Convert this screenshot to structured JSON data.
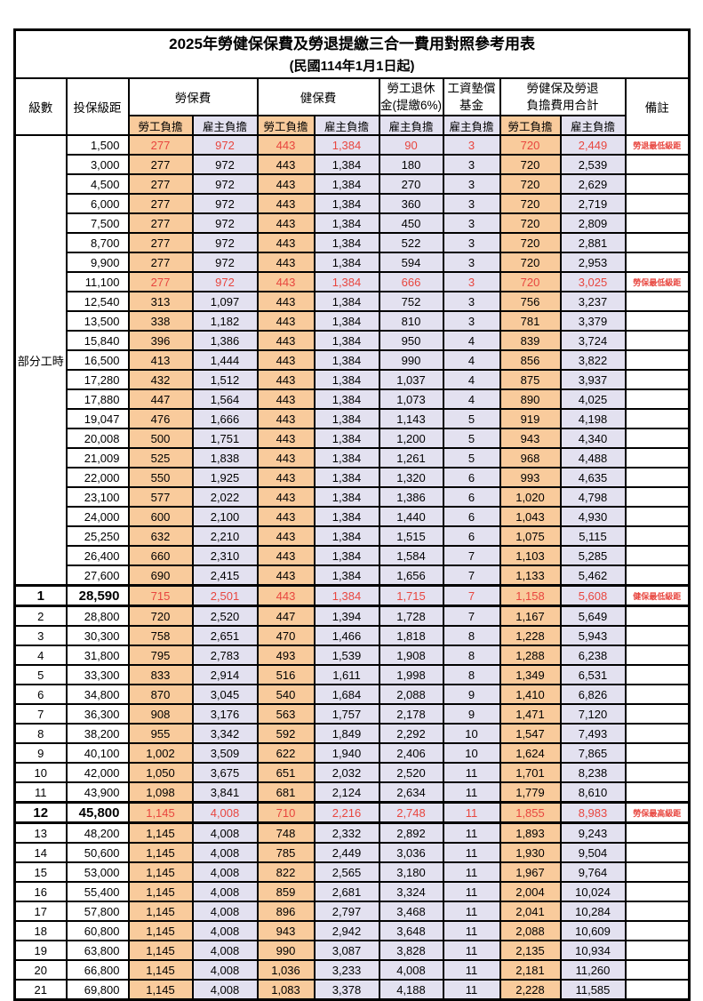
{
  "title": "2025年勞健保保費及勞退提繳三合一費用對照參考用表",
  "subtitle": "(民國114年1月1日起)",
  "colors": {
    "worker_bg": "#F9CB9C",
    "employer_bg": "#E3E1F0",
    "highlight_text": "#E8463F"
  },
  "header": {
    "level": "級數",
    "bracket": "投保級距",
    "labor_group": "勞保費",
    "health_group": "健保費",
    "pension_line1": "勞工退休",
    "pension_line2": "金(提繳6%)",
    "wage_fund_line1": "工資墊償",
    "wage_fund_line2": "基金",
    "total_line1": "勞健保及勞退",
    "total_line2": "負擔費用合計",
    "remark": "備註",
    "worker": "勞工負擔",
    "employer": "雇主負擔"
  },
  "table": {
    "part_time_label": "部分工時",
    "part_time_span": 23,
    "columns": [
      "勞保費-勞工負擔",
      "勞保費-雇主負擔",
      "健保費-勞工負擔",
      "健保費-雇主負擔",
      "勞工退休金-雇主負擔",
      "工資墊償基金-雇主負擔",
      "合計-勞工負擔",
      "合計-雇主負擔"
    ],
    "rows": [
      {
        "bracket": "1,500",
        "values": [
          "277",
          "972",
          "443",
          "1,384",
          "90",
          "3",
          "720",
          "2,449"
        ],
        "remark": "勞退最低級距",
        "highlight": true
      },
      {
        "bracket": "3,000",
        "values": [
          "277",
          "972",
          "443",
          "1,384",
          "180",
          "3",
          "720",
          "2,539"
        ]
      },
      {
        "bracket": "4,500",
        "values": [
          "277",
          "972",
          "443",
          "1,384",
          "270",
          "3",
          "720",
          "2,629"
        ]
      },
      {
        "bracket": "6,000",
        "values": [
          "277",
          "972",
          "443",
          "1,384",
          "360",
          "3",
          "720",
          "2,719"
        ]
      },
      {
        "bracket": "7,500",
        "values": [
          "277",
          "972",
          "443",
          "1,384",
          "450",
          "3",
          "720",
          "2,809"
        ]
      },
      {
        "bracket": "8,700",
        "values": [
          "277",
          "972",
          "443",
          "1,384",
          "522",
          "3",
          "720",
          "2,881"
        ]
      },
      {
        "bracket": "9,900",
        "values": [
          "277",
          "972",
          "443",
          "1,384",
          "594",
          "3",
          "720",
          "2,953"
        ]
      },
      {
        "bracket": "11,100",
        "values": [
          "277",
          "972",
          "443",
          "1,384",
          "666",
          "3",
          "720",
          "3,025"
        ],
        "remark": "勞保最低級距",
        "highlight": true
      },
      {
        "bracket": "12,540",
        "values": [
          "313",
          "1,097",
          "443",
          "1,384",
          "752",
          "3",
          "756",
          "3,237"
        ]
      },
      {
        "bracket": "13,500",
        "values": [
          "338",
          "1,182",
          "443",
          "1,384",
          "810",
          "3",
          "781",
          "3,379"
        ]
      },
      {
        "bracket": "15,840",
        "values": [
          "396",
          "1,386",
          "443",
          "1,384",
          "950",
          "4",
          "839",
          "3,724"
        ]
      },
      {
        "bracket": "16,500",
        "values": [
          "413",
          "1,444",
          "443",
          "1,384",
          "990",
          "4",
          "856",
          "3,822"
        ]
      },
      {
        "bracket": "17,280",
        "values": [
          "432",
          "1,512",
          "443",
          "1,384",
          "1,037",
          "4",
          "875",
          "3,937"
        ]
      },
      {
        "bracket": "17,880",
        "values": [
          "447",
          "1,564",
          "443",
          "1,384",
          "1,073",
          "4",
          "890",
          "4,025"
        ]
      },
      {
        "bracket": "19,047",
        "values": [
          "476",
          "1,666",
          "443",
          "1,384",
          "1,143",
          "5",
          "919",
          "4,198"
        ]
      },
      {
        "bracket": "20,008",
        "values": [
          "500",
          "1,751",
          "443",
          "1,384",
          "1,200",
          "5",
          "943",
          "4,340"
        ]
      },
      {
        "bracket": "21,009",
        "values": [
          "525",
          "1,838",
          "443",
          "1,384",
          "1,261",
          "5",
          "968",
          "4,488"
        ]
      },
      {
        "bracket": "22,000",
        "values": [
          "550",
          "1,925",
          "443",
          "1,384",
          "1,320",
          "6",
          "993",
          "4,635"
        ]
      },
      {
        "bracket": "23,100",
        "values": [
          "577",
          "2,022",
          "443",
          "1,384",
          "1,386",
          "6",
          "1,020",
          "4,798"
        ]
      },
      {
        "bracket": "24,000",
        "values": [
          "600",
          "2,100",
          "443",
          "1,384",
          "1,440",
          "6",
          "1,043",
          "4,930"
        ]
      },
      {
        "bracket": "25,250",
        "values": [
          "632",
          "2,210",
          "443",
          "1,384",
          "1,515",
          "6",
          "1,075",
          "5,115"
        ]
      },
      {
        "bracket": "26,400",
        "values": [
          "660",
          "2,310",
          "443",
          "1,384",
          "1,584",
          "7",
          "1,103",
          "5,285"
        ]
      },
      {
        "bracket": "27,600",
        "values": [
          "690",
          "2,415",
          "443",
          "1,384",
          "1,656",
          "7",
          "1,133",
          "5,462"
        ]
      },
      {
        "level": "1",
        "bracket": "28,590",
        "values": [
          "715",
          "2,501",
          "443",
          "1,384",
          "1,715",
          "7",
          "1,158",
          "5,608"
        ],
        "remark": "健保最低級距",
        "highlight": true,
        "emphasis": true,
        "frame": true
      },
      {
        "level": "2",
        "bracket": "28,800",
        "values": [
          "720",
          "2,520",
          "447",
          "1,394",
          "1,728",
          "7",
          "1,167",
          "5,649"
        ]
      },
      {
        "level": "3",
        "bracket": "30,300",
        "values": [
          "758",
          "2,651",
          "470",
          "1,466",
          "1,818",
          "8",
          "1,228",
          "5,943"
        ]
      },
      {
        "level": "4",
        "bracket": "31,800",
        "values": [
          "795",
          "2,783",
          "493",
          "1,539",
          "1,908",
          "8",
          "1,288",
          "6,238"
        ]
      },
      {
        "level": "5",
        "bracket": "33,300",
        "values": [
          "833",
          "2,914",
          "516",
          "1,611",
          "1,998",
          "8",
          "1,349",
          "6,531"
        ]
      },
      {
        "level": "6",
        "bracket": "34,800",
        "values": [
          "870",
          "3,045",
          "540",
          "1,684",
          "2,088",
          "9",
          "1,410",
          "6,826"
        ]
      },
      {
        "level": "7",
        "bracket": "36,300",
        "values": [
          "908",
          "3,176",
          "563",
          "1,757",
          "2,178",
          "9",
          "1,471",
          "7,120"
        ]
      },
      {
        "level": "8",
        "bracket": "38,200",
        "values": [
          "955",
          "3,342",
          "592",
          "1,849",
          "2,292",
          "10",
          "1,547",
          "7,493"
        ]
      },
      {
        "level": "9",
        "bracket": "40,100",
        "values": [
          "1,002",
          "3,509",
          "622",
          "1,940",
          "2,406",
          "10",
          "1,624",
          "7,865"
        ]
      },
      {
        "level": "10",
        "bracket": "42,000",
        "values": [
          "1,050",
          "3,675",
          "651",
          "2,032",
          "2,520",
          "11",
          "1,701",
          "8,238"
        ]
      },
      {
        "level": "11",
        "bracket": "43,900",
        "values": [
          "1,098",
          "3,841",
          "681",
          "2,124",
          "2,634",
          "11",
          "1,779",
          "8,610"
        ]
      },
      {
        "level": "12",
        "bracket": "45,800",
        "values": [
          "1,145",
          "4,008",
          "710",
          "2,216",
          "2,748",
          "11",
          "1,855",
          "8,983"
        ],
        "remark": "勞保最高級距",
        "highlight": true,
        "emphasis": true,
        "frame": true
      },
      {
        "level": "13",
        "bracket": "48,200",
        "values": [
          "1,145",
          "4,008",
          "748",
          "2,332",
          "2,892",
          "11",
          "1,893",
          "9,243"
        ]
      },
      {
        "level": "14",
        "bracket": "50,600",
        "values": [
          "1,145",
          "4,008",
          "785",
          "2,449",
          "3,036",
          "11",
          "1,930",
          "9,504"
        ]
      },
      {
        "level": "15",
        "bracket": "53,000",
        "values": [
          "1,145",
          "4,008",
          "822",
          "2,565",
          "3,180",
          "11",
          "1,967",
          "9,764"
        ]
      },
      {
        "level": "16",
        "bracket": "55,400",
        "values": [
          "1,145",
          "4,008",
          "859",
          "2,681",
          "3,324",
          "11",
          "2,004",
          "10,024"
        ]
      },
      {
        "level": "17",
        "bracket": "57,800",
        "values": [
          "1,145",
          "4,008",
          "896",
          "2,797",
          "3,468",
          "11",
          "2,041",
          "10,284"
        ]
      },
      {
        "level": "18",
        "bracket": "60,800",
        "values": [
          "1,145",
          "4,008",
          "943",
          "2,942",
          "3,648",
          "11",
          "2,088",
          "10,609"
        ]
      },
      {
        "level": "19",
        "bracket": "63,800",
        "values": [
          "1,145",
          "4,008",
          "990",
          "3,087",
          "3,828",
          "11",
          "2,135",
          "10,934"
        ]
      },
      {
        "level": "20",
        "bracket": "66,800",
        "values": [
          "1,145",
          "4,008",
          "1,036",
          "3,233",
          "4,008",
          "11",
          "2,181",
          "11,260"
        ]
      },
      {
        "level": "21",
        "bracket": "69,800",
        "values": [
          "1,145",
          "4,008",
          "1,083",
          "3,378",
          "4,188",
          "11",
          "2,228",
          "11,585"
        ]
      }
    ]
  }
}
